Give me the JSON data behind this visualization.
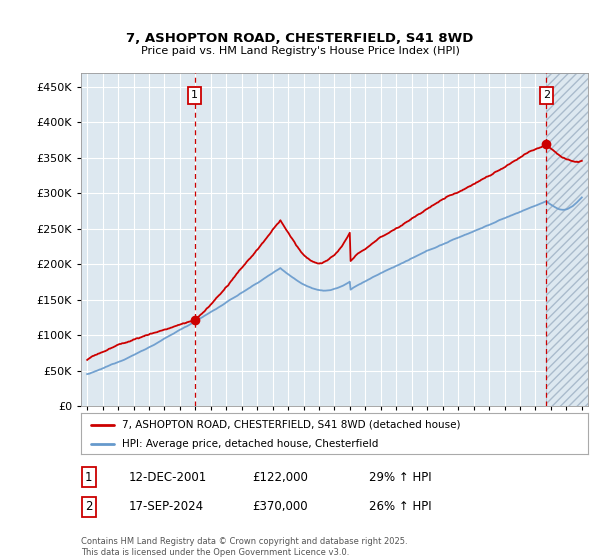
{
  "title": "7, ASHOPTON ROAD, CHESTERFIELD, S41 8WD",
  "subtitle": "Price paid vs. HM Land Registry's House Price Index (HPI)",
  "xlim_min": 1994.6,
  "xlim_max": 2027.4,
  "ylim_min": 0,
  "ylim_max": 470000,
  "yticks": [
    0,
    50000,
    100000,
    150000,
    200000,
    250000,
    300000,
    350000,
    400000,
    450000
  ],
  "vline1_x": 2001.95,
  "vline2_x": 2024.71,
  "marker1_x": 2001.95,
  "marker1_y": 122000,
  "marker2_x": 2024.71,
  "marker2_y": 370000,
  "legend_line1": "7, ASHOPTON ROAD, CHESTERFIELD, S41 8WD (detached house)",
  "legend_line2": "HPI: Average price, detached house, Chesterfield",
  "table_row1_num": "1",
  "table_row1_date": "12-DEC-2001",
  "table_row1_price": "£122,000",
  "table_row1_hpi": "29% ↑ HPI",
  "table_row2_num": "2",
  "table_row2_date": "17-SEP-2024",
  "table_row2_price": "£370,000",
  "table_row2_hpi": "26% ↑ HPI",
  "footnote": "Contains HM Land Registry data © Crown copyright and database right 2025.\nThis data is licensed under the Open Government Licence v3.0.",
  "red_color": "#cc0000",
  "blue_color": "#6699cc",
  "chart_bg_color": "#dde8f0",
  "fig_bg_color": "#ffffff",
  "grid_color": "#ffffff",
  "hatch_start": 2024.7
}
